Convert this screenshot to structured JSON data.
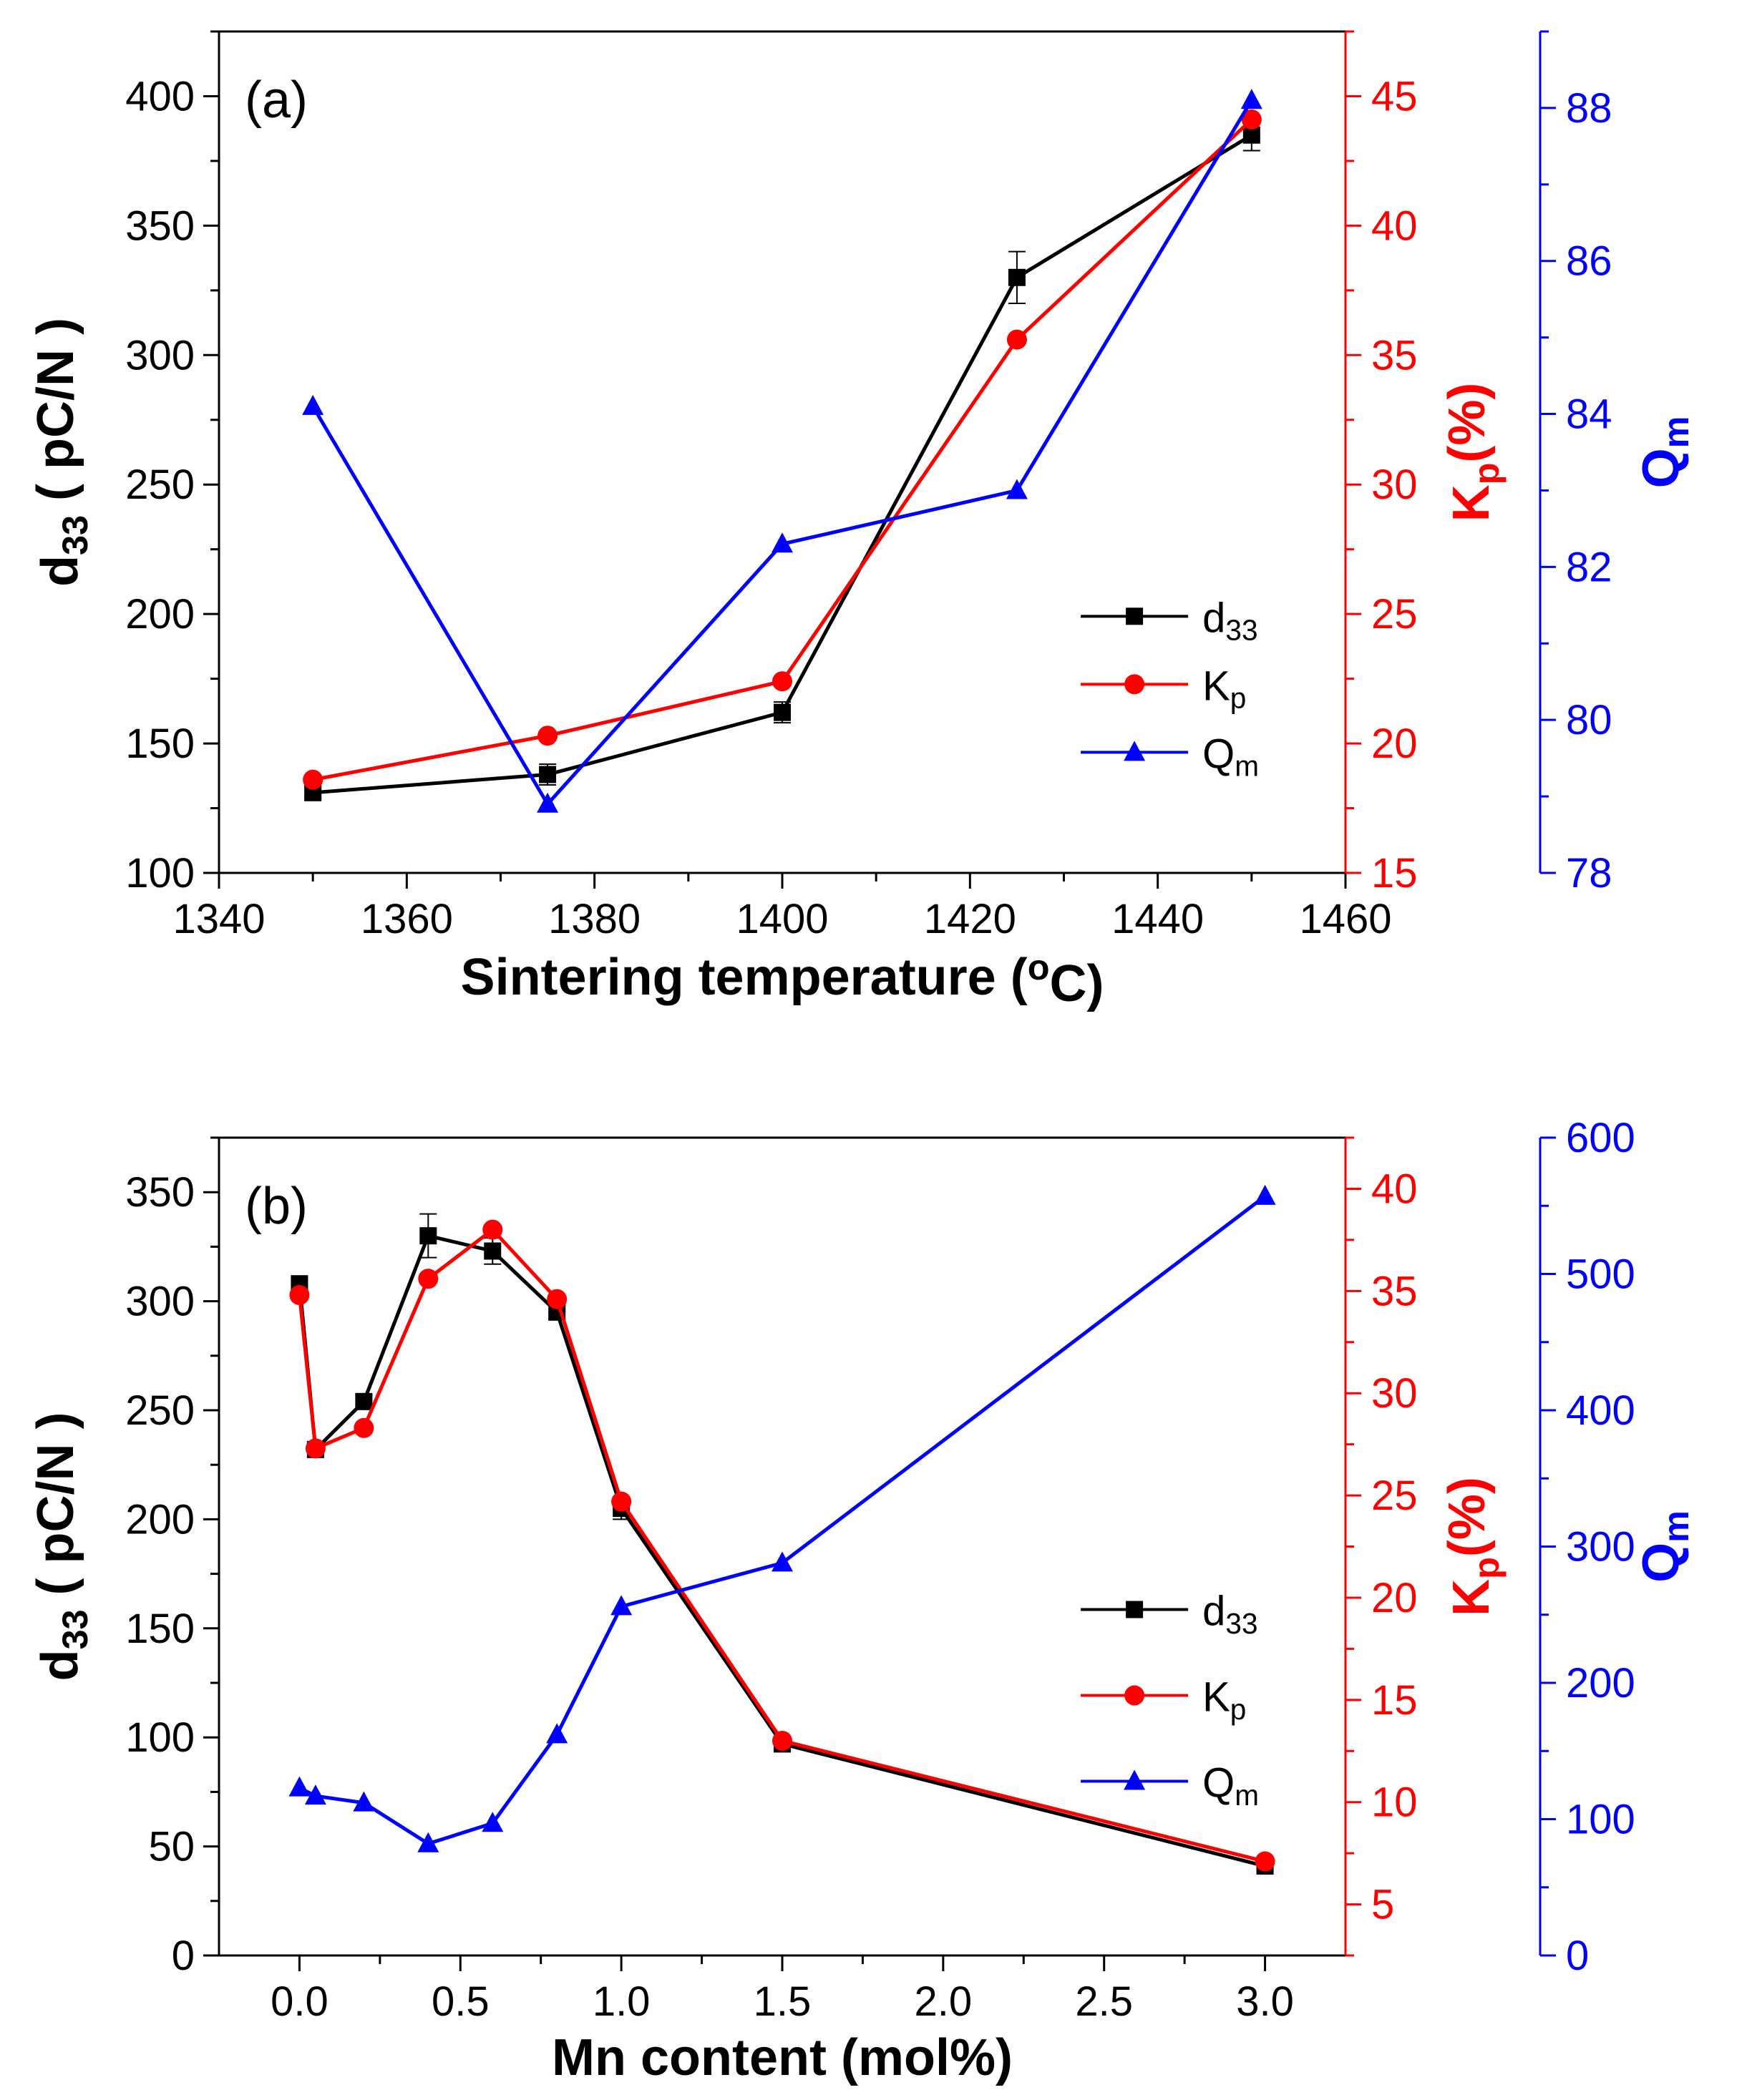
{
  "chart_data": [
    {
      "type": "line",
      "panel_label": "(a)",
      "xlabel": "Sintering temperature (",
      "xlabel_sup": "o",
      "xlabel_end": "C)",
      "xlim": [
        1340,
        1460
      ],
      "x_ticks": [
        1340,
        1360,
        1380,
        1400,
        1420,
        1440,
        1460
      ],
      "axes": {
        "left": {
          "label_main": "d",
          "label_sub": "33",
          "label_end": " ( pC/N )",
          "lim": [
            100,
            425
          ],
          "ticks": [
            100,
            150,
            200,
            250,
            300,
            350,
            400
          ],
          "color": "#000000"
        },
        "right1": {
          "label_main": "K",
          "label_sub": "p",
          "label_end": "(%)",
          "lim": [
            15,
            47.5
          ],
          "ticks": [
            15,
            20,
            25,
            30,
            35,
            40,
            45
          ],
          "color": "#ff0000"
        },
        "right2": {
          "label_main": "Q",
          "label_sub": "m",
          "label_end": "",
          "lim": [
            78,
            89
          ],
          "ticks": [
            78,
            80,
            82,
            84,
            86,
            88
          ],
          "color": "#0000ff"
        }
      },
      "series": [
        {
          "name": "d33",
          "legend_main": "d",
          "legend_sub": "33",
          "axis": "left",
          "color": "#000000",
          "marker": "square",
          "x": [
            1350,
            1375,
            1400,
            1425,
            1450
          ],
          "values": [
            131,
            138,
            162,
            330,
            385
          ],
          "errors": [
            2,
            4,
            4,
            10,
            6
          ]
        },
        {
          "name": "Kp",
          "legend_main": "K",
          "legend_sub": "p",
          "axis": "right1",
          "color": "#ff0000",
          "marker": "circle",
          "x": [
            1350,
            1375,
            1400,
            1425,
            1450
          ],
          "values": [
            18.6,
            20.3,
            22.4,
            35.6,
            44.1
          ]
        },
        {
          "name": "Qm",
          "legend_main": "Q",
          "legend_sub": "m",
          "axis": "right2",
          "color": "#0000ff",
          "marker": "triangle",
          "x": [
            1350,
            1375,
            1400,
            1425,
            1450
          ],
          "values": [
            84.1,
            78.9,
            82.3,
            83.0,
            88.1
          ]
        }
      ],
      "legend_position": "lower-right"
    },
    {
      "type": "line",
      "panel_label": "(b)",
      "xlabel": "Mn content (mol%)",
      "xlim": [
        -0.25,
        3.25
      ],
      "x_ticks": [
        0.0,
        0.5,
        1.0,
        1.5,
        2.0,
        2.5,
        3.0
      ],
      "x_tick_labels": [
        "0.0",
        "0.5",
        "1.0",
        "1.5",
        "2.0",
        "2.5",
        "3.0"
      ],
      "axes": {
        "left": {
          "label_main": "d",
          "label_sub": "33",
          "label_end": " ( pC/N )",
          "lim": [
            0,
            375
          ],
          "ticks": [
            0,
            50,
            100,
            150,
            200,
            250,
            300,
            350
          ],
          "color": "#000000"
        },
        "right1": {
          "label_main": "K",
          "label_sub": "p",
          "label_end": "(%)",
          "lim": [
            2.5,
            42.5
          ],
          "ticks": [
            5,
            10,
            15,
            20,
            25,
            30,
            35,
            40
          ],
          "color": "#ff0000"
        },
        "right2": {
          "label_main": "Q",
          "label_sub": "m",
          "label_end": "",
          "lim": [
            0,
            600
          ],
          "ticks": [
            0,
            100,
            200,
            300,
            400,
            500,
            600
          ],
          "color": "#0000ff"
        }
      },
      "series": [
        {
          "name": "d33",
          "legend_main": "d",
          "legend_sub": "33",
          "axis": "left",
          "color": "#000000",
          "marker": "square",
          "x": [
            0,
            0.05,
            0.2,
            0.4,
            0.6,
            0.8,
            1.0,
            1.5,
            3.0
          ],
          "values": [
            308,
            232,
            254,
            330,
            323,
            295,
            205,
            97,
            41
          ],
          "errors": [
            3,
            3,
            3,
            10,
            6,
            3,
            5,
            2,
            1
          ]
        },
        {
          "name": "Kp",
          "legend_main": "K",
          "legend_sub": "p",
          "axis": "right1",
          "color": "#ff0000",
          "marker": "circle",
          "x": [
            0,
            0.05,
            0.2,
            0.4,
            0.6,
            0.8,
            1.0,
            1.5,
            3.0
          ],
          "values": [
            34.8,
            27.3,
            28.3,
            35.6,
            38.0,
            34.6,
            24.7,
            13.0,
            7.1
          ]
        },
        {
          "name": "Qm",
          "legend_main": "Q",
          "legend_sub": "m",
          "axis": "right2",
          "color": "#0000ff",
          "marker": "triangle",
          "x": [
            0,
            0.05,
            0.2,
            0.4,
            0.6,
            0.8,
            1.0,
            1.5,
            3.0
          ],
          "values": [
            123,
            117,
            112,
            82,
            97,
            162,
            256,
            288,
            557
          ]
        }
      ],
      "legend_position": "lower-right"
    }
  ]
}
